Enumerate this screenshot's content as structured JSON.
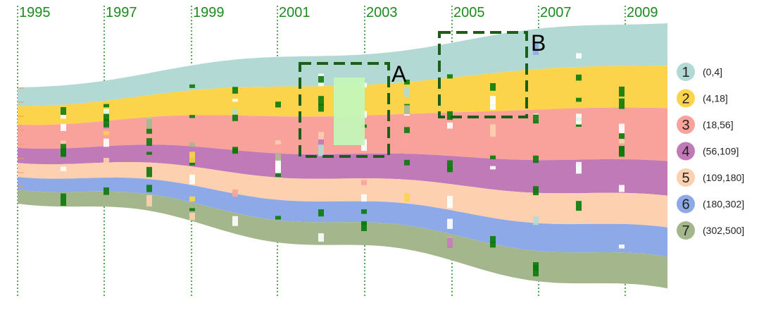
{
  "chart_data": {
    "type": "area",
    "x": [
      "1995",
      "1997",
      "1999",
      "2001",
      "2003",
      "2005",
      "2007",
      "2009"
    ],
    "colors": {
      "year_text": "#1e8a1e",
      "year_grid": "#1e8a1e",
      "highlight_box": "#1a5e1a",
      "highlight_fill": "#c4f7b8",
      "marker_green": "#0a7a0a"
    },
    "series": [
      {
        "name": "1",
        "range": "(0,4]",
        "color": "#b3d9d4"
      },
      {
        "name": "2",
        "range": "(4,18]",
        "color": "#fcd44b"
      },
      {
        "name": "3",
        "range": "(18,56]",
        "color": "#f9a29b"
      },
      {
        "name": "4",
        "range": "(56,109]",
        "color": "#c07ab8"
      },
      {
        "name": "5",
        "range": "(109,180]",
        "color": "#fdd0b0"
      },
      {
        "name": "6",
        "range": "(180,302]",
        "color": "#8ea9e8"
      },
      {
        "name": "7",
        "range": "(302,500]",
        "color": "#a4b78c"
      }
    ],
    "annotations": [
      {
        "label": "A"
      },
      {
        "label": "B"
      }
    ],
    "grid": true,
    "legend_position": "right"
  }
}
